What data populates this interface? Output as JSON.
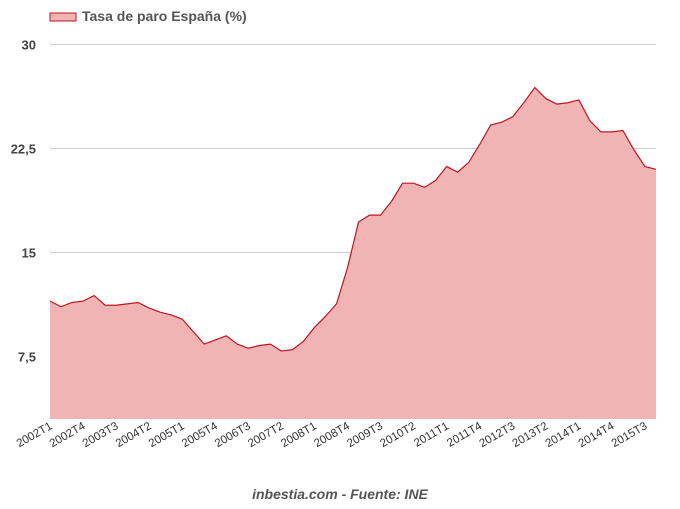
{
  "colors": {
    "series_line": "#c0161f",
    "series_fill": "#f0b4b5",
    "grid": "#d0d0d0",
    "text": "#444444"
  },
  "footer": {
    "source": "inbestia.com - Fuente: INE"
  },
  "chart_data": {
    "type": "area",
    "title": "",
    "xlabel": "",
    "ylabel": "",
    "ylim": [
      3,
      30
    ],
    "yticks": [
      "30",
      "22,5",
      "15",
      "7,5"
    ],
    "ytick_values": [
      30,
      22.5,
      15,
      7.5
    ],
    "grid": true,
    "legend": "top-left",
    "xtick_labels": [
      "2002T1",
      "2002T4",
      "2003T3",
      "2004T2",
      "2005T1",
      "2005T4",
      "2006T3",
      "2007T2",
      "2008T1",
      "2008T4",
      "2009T3",
      "2010T2",
      "2011T1",
      "2011T4",
      "2012T3",
      "2013T2",
      "2014T1",
      "2014T4",
      "2015T3"
    ],
    "x": [
      "2002T1",
      "2002T2",
      "2002T3",
      "2002T4",
      "2003T1",
      "2003T2",
      "2003T3",
      "2003T4",
      "2004T1",
      "2004T2",
      "2004T3",
      "2004T4",
      "2005T1",
      "2005T2",
      "2005T3",
      "2005T4",
      "2006T1",
      "2006T2",
      "2006T3",
      "2006T4",
      "2007T1",
      "2007T2",
      "2007T3",
      "2007T4",
      "2008T1",
      "2008T2",
      "2008T3",
      "2008T4",
      "2009T1",
      "2009T2",
      "2009T3",
      "2009T4",
      "2010T1",
      "2010T2",
      "2010T3",
      "2010T4",
      "2011T1",
      "2011T2",
      "2011T3",
      "2011T4",
      "2012T1",
      "2012T2",
      "2012T3",
      "2012T4",
      "2013T1",
      "2013T2",
      "2013T3",
      "2013T4",
      "2014T1",
      "2014T2",
      "2014T3",
      "2014T4",
      "2015T1",
      "2015T2",
      "2015T3",
      "2015T4"
    ],
    "series": [
      {
        "name": "Tasa de paro España (%)",
        "values": [
          11.5,
          11.1,
          11.4,
          11.5,
          11.9,
          11.2,
          11.2,
          11.3,
          11.4,
          11.0,
          10.7,
          10.5,
          10.2,
          9.3,
          8.4,
          8.7,
          9.0,
          8.4,
          8.1,
          8.3,
          8.4,
          7.9,
          8.0,
          8.6,
          9.6,
          10.4,
          11.3,
          13.9,
          17.2,
          17.7,
          17.7,
          18.7,
          20.0,
          20.0,
          19.7,
          20.2,
          21.2,
          20.8,
          21.5,
          22.8,
          24.2,
          24.4,
          24.8,
          25.8,
          26.9,
          26.1,
          25.7,
          25.8,
          26.0,
          24.5,
          23.7,
          23.7,
          23.8,
          22.4,
          21.2,
          21.0
        ]
      }
    ]
  }
}
